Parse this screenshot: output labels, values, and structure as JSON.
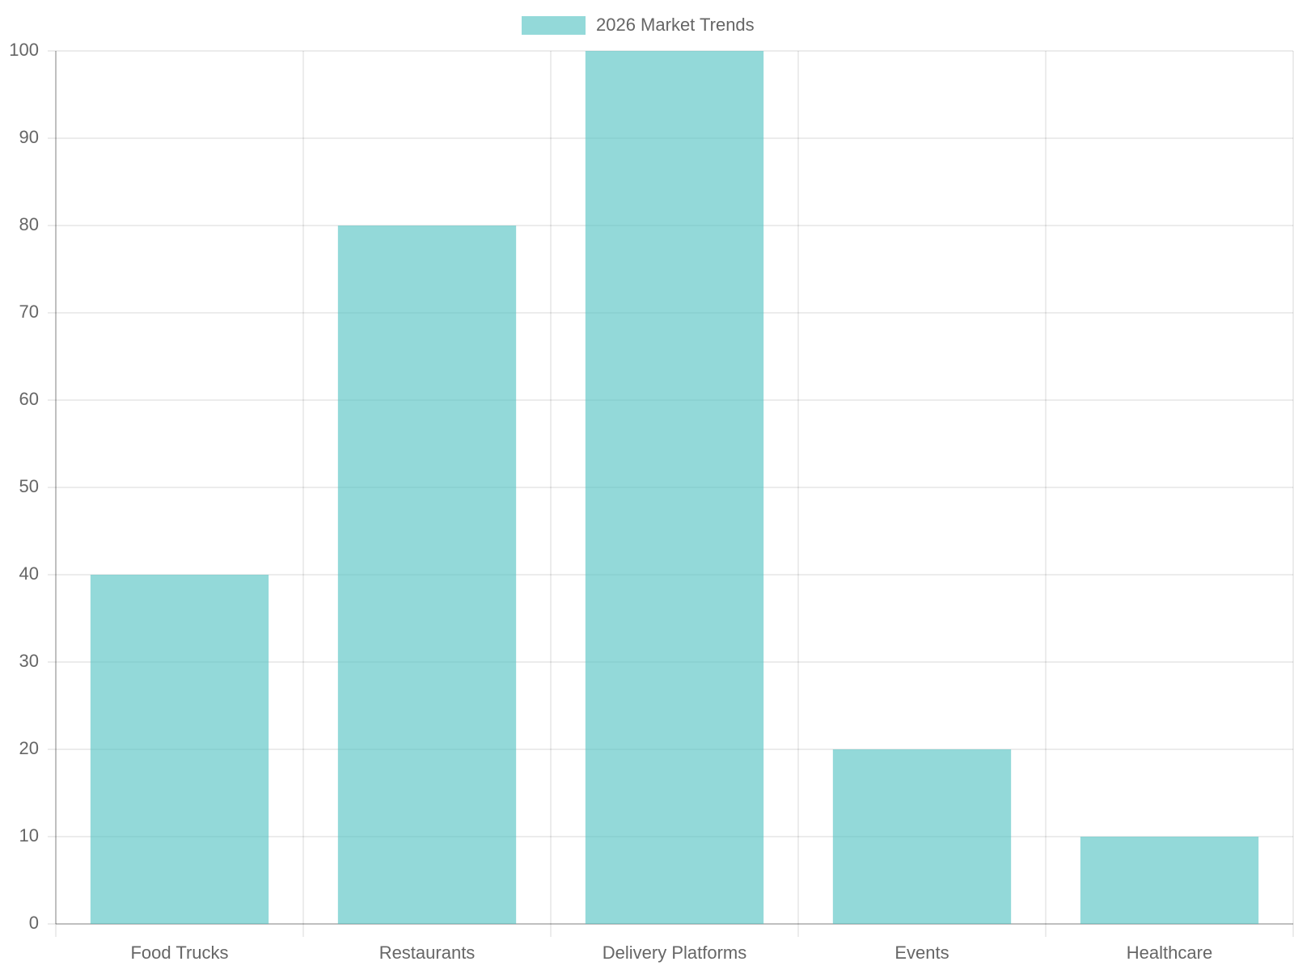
{
  "chart_data": {
    "type": "bar",
    "categories": [
      "Food Trucks",
      "Restaurants",
      "Delivery Platforms",
      "Events",
      "Healthcare"
    ],
    "series": [
      {
        "name": "2026 Market Trends",
        "color": "rgba(75, 192, 192, 0.6)",
        "values": [
          40,
          80,
          100,
          20,
          10
        ]
      }
    ],
    "ylim": [
      0,
      100
    ],
    "yticks": [
      0,
      10,
      20,
      30,
      40,
      50,
      60,
      70,
      80,
      90,
      100
    ],
    "grid": true,
    "legend": "top"
  }
}
